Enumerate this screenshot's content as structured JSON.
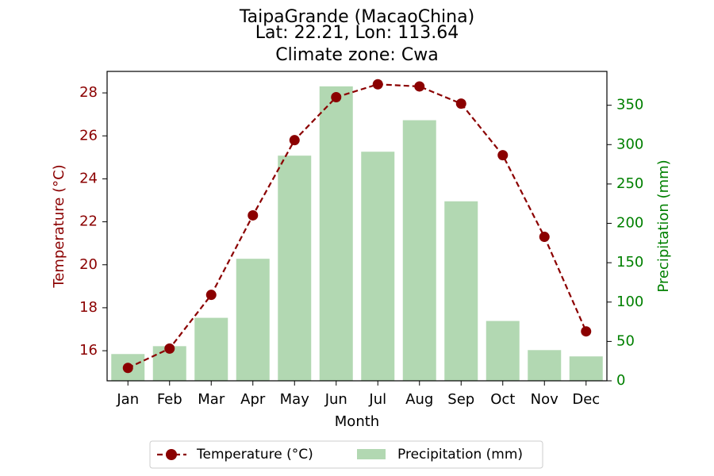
{
  "chart_data": {
    "type": "bar+line",
    "title": "TaipaGrande (MacaoChina)",
    "subtitle_lines": [
      "Lat: 22.21, Lon: 113.64",
      "Climate zone: Cwa"
    ],
    "xlabel": "Month",
    "categories": [
      "Jan",
      "Feb",
      "Mar",
      "Apr",
      "May",
      "Jun",
      "Jul",
      "Aug",
      "Sep",
      "Oct",
      "Nov",
      "Dec"
    ],
    "temperature": {
      "name": "Temperature (°C)",
      "axis_label": "Temperature (°C)",
      "values": [
        15.2,
        16.1,
        18.6,
        22.3,
        25.8,
        27.8,
        28.4,
        28.3,
        27.5,
        25.1,
        21.3,
        16.9
      ],
      "ylim": [
        14.6,
        29.0
      ],
      "ticks": [
        16,
        18,
        20,
        22,
        24,
        26,
        28
      ],
      "color": "#8b0000"
    },
    "precipitation": {
      "name": "Precipitation (mm)",
      "axis_label": "Precipitation (mm)",
      "values": [
        34,
        44,
        80,
        155,
        286,
        374,
        291,
        331,
        228,
        76,
        39,
        31
      ],
      "ylim": [
        0,
        393
      ],
      "ticks": [
        0,
        50,
        100,
        150,
        200,
        250,
        300,
        350
      ],
      "bar_color": "#b2d8b2",
      "axis_color": "#008000"
    },
    "legend_position": "bottom-center"
  }
}
